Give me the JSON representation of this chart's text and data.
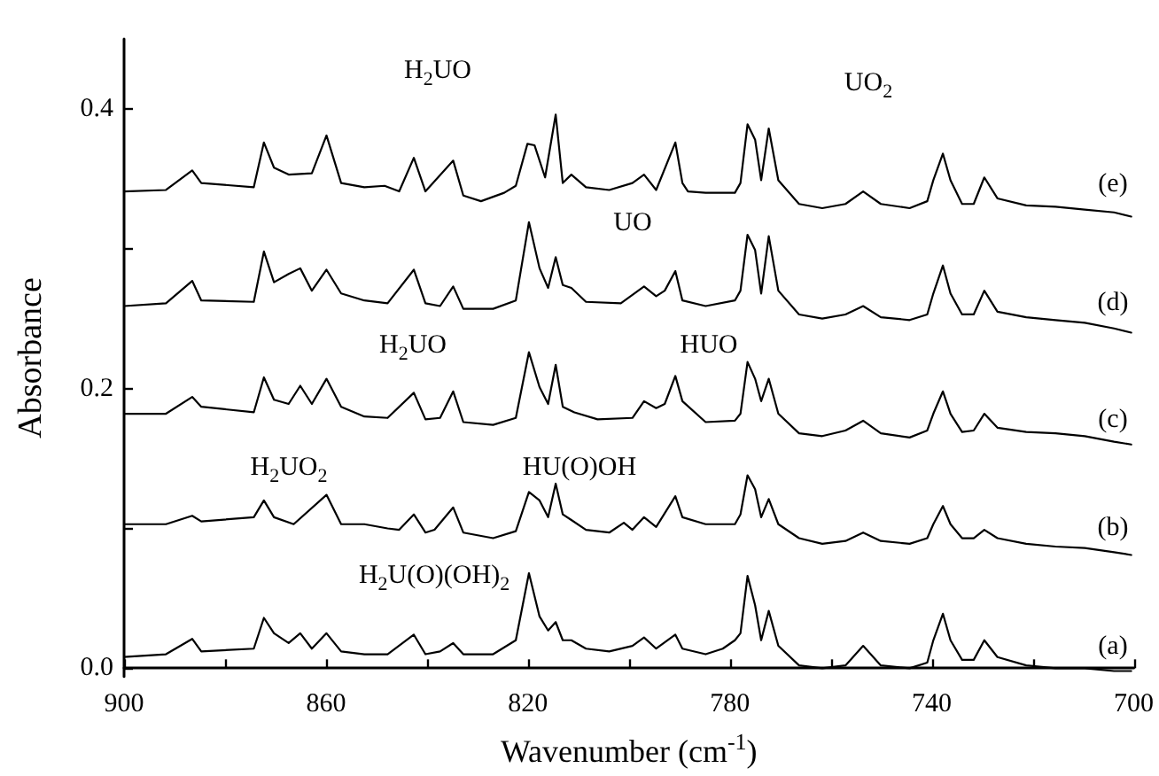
{
  "chart_data": {
    "type": "line",
    "xlabel": "Wavenumber (cm$^{-1}$)",
    "ylabel": "Absorbance",
    "xlim": [
      900,
      700
    ],
    "ylim": [
      -0.006,
      0.45
    ],
    "xticks": [
      900,
      {
        "value": 880,
        "label": null
      },
      860,
      {
        "value": 840,
        "label": null
      },
      820,
      {
        "value": 800,
        "label": null
      },
      780,
      {
        "value": 760,
        "label": null
      },
      740,
      {
        "value": 720,
        "label": null
      },
      700
    ],
    "yticks": [
      {
        "value": 0,
        "label": "0.0"
      },
      {
        "value": 0.1,
        "label": null
      },
      0.2,
      {
        "value": 0.3,
        "label": null
      },
      0.4
    ],
    "grid": false,
    "marker": "none",
    "line_style": "solid",
    "series": [
      {
        "color": "#000000",
        "x": [
          900,
          891.7,
          886.5,
          884.7,
          874.3,
          872.3,
          870.3,
          867.4,
          862.8,
          859.9,
          857.0,
          852.4,
          848.4,
          845.5,
          842.6,
          840.3,
          834.8,
          832.8,
          829.3,
          824.7,
          822.4,
          820.1,
          818.7,
          816.6,
          814.5,
          813.1,
          811.4,
          808.5,
          803.9,
          799.3,
          797.0,
          794.6,
          790.8,
          789.4,
          788.3,
          784.8,
          779.0,
          777.9,
          776.5,
          775.0,
          773.8,
          772.3,
          770.4,
          766.3,
          761.7,
          757.1,
          753.6,
          750.1,
          744.4,
          740.9,
          739.7,
          737.8,
          736.3,
          734.0,
          731.7,
          729.6,
          727.0,
          721.3,
          715.5,
          709.7,
          703.9,
          700.5
        ],
        "values": [
          0.341,
          0.342,
          0.356,
          0.347,
          0.344,
          0.376,
          0.358,
          0.353,
          0.354,
          0.381,
          0.347,
          0.344,
          0.345,
          0.341,
          0.365,
          0.341,
          0.363,
          0.338,
          0.334,
          0.34,
          0.345,
          0.375,
          0.374,
          0.351,
          0.396,
          0.347,
          0.353,
          0.344,
          0.342,
          0.347,
          0.353,
          0.342,
          0.376,
          0.347,
          0.341,
          0.34,
          0.34,
          0.347,
          0.389,
          0.378,
          0.349,
          0.386,
          0.349,
          0.332,
          0.329,
          0.332,
          0.341,
          0.332,
          0.329,
          0.334,
          0.349,
          0.368,
          0.349,
          0.332,
          0.332,
          0.351,
          0.336,
          0.331,
          0.33,
          0.328,
          0.326,
          0.323
        ]
      },
      {
        "color": "#000000",
        "x": [
          900,
          891.7,
          886.5,
          884.7,
          874.3,
          872.3,
          870.3,
          867.4,
          865.1,
          862.8,
          859.9,
          857.0,
          852.4,
          847.8,
          842.6,
          840.3,
          837.4,
          834.8,
          832.8,
          826.9,
          822.4,
          819.8,
          817.7,
          816.0,
          814.5,
          813.1,
          811.4,
          808.5,
          801.6,
          797.0,
          794.6,
          792.9,
          790.8,
          789.4,
          784.8,
          779.0,
          777.9,
          776.5,
          775.0,
          773.8,
          772.3,
          770.4,
          766.3,
          761.7,
          757.1,
          753.6,
          750.1,
          744.4,
          740.9,
          739.7,
          737.8,
          736.3,
          734.0,
          731.7,
          729.6,
          727.0,
          721.3,
          715.5,
          709.7,
          703.9,
          700.5
        ],
        "values": [
          0.259,
          0.261,
          0.277,
          0.263,
          0.262,
          0.298,
          0.276,
          0.282,
          0.286,
          0.27,
          0.285,
          0.268,
          0.263,
          0.261,
          0.285,
          0.261,
          0.259,
          0.273,
          0.257,
          0.257,
          0.263,
          0.319,
          0.286,
          0.272,
          0.294,
          0.274,
          0.272,
          0.262,
          0.261,
          0.273,
          0.266,
          0.27,
          0.284,
          0.263,
          0.259,
          0.263,
          0.27,
          0.31,
          0.299,
          0.268,
          0.309,
          0.27,
          0.253,
          0.25,
          0.253,
          0.259,
          0.251,
          0.249,
          0.253,
          0.268,
          0.288,
          0.268,
          0.253,
          0.253,
          0.27,
          0.255,
          0.251,
          0.249,
          0.247,
          0.243,
          0.24
        ]
      },
      {
        "color": "#000000",
        "x": [
          900,
          891.7,
          886.5,
          884.7,
          874.3,
          872.3,
          870.3,
          867.4,
          865.1,
          862.8,
          859.9,
          857.0,
          852.4,
          847.8,
          842.6,
          840.3,
          837.4,
          834.8,
          832.8,
          826.9,
          822.4,
          819.8,
          817.7,
          816.0,
          814.5,
          813.1,
          810.8,
          806.2,
          799.3,
          797.0,
          794.6,
          792.9,
          790.8,
          789.4,
          784.8,
          779.0,
          777.9,
          776.5,
          775.0,
          773.8,
          772.3,
          770.4,
          766.3,
          761.7,
          757.1,
          753.6,
          750.1,
          744.4,
          740.9,
          739.7,
          737.8,
          736.3,
          734.0,
          731.7,
          729.6,
          727.0,
          721.3,
          715.5,
          709.7,
          703.9,
          700.5
        ],
        "values": [
          0.182,
          0.182,
          0.194,
          0.187,
          0.183,
          0.208,
          0.192,
          0.189,
          0.202,
          0.189,
          0.207,
          0.187,
          0.18,
          0.179,
          0.197,
          0.178,
          0.179,
          0.198,
          0.176,
          0.174,
          0.179,
          0.226,
          0.201,
          0.189,
          0.217,
          0.187,
          0.183,
          0.178,
          0.179,
          0.191,
          0.186,
          0.189,
          0.209,
          0.191,
          0.176,
          0.177,
          0.182,
          0.219,
          0.207,
          0.191,
          0.207,
          0.182,
          0.168,
          0.166,
          0.17,
          0.177,
          0.168,
          0.165,
          0.17,
          0.182,
          0.198,
          0.182,
          0.169,
          0.17,
          0.182,
          0.172,
          0.169,
          0.168,
          0.166,
          0.162,
          0.16
        ]
      },
      {
        "color": "#000000",
        "x": [
          900,
          891.7,
          886.5,
          884.7,
          874.3,
          872.3,
          870.3,
          866.4,
          859.9,
          857.0,
          852.4,
          847.8,
          845.5,
          842.6,
          840.3,
          838.5,
          834.8,
          832.8,
          826.9,
          822.4,
          819.8,
          817.7,
          816.0,
          814.5,
          813.1,
          811.4,
          808.5,
          803.9,
          801.0,
          799.3,
          797.0,
          794.6,
          790.8,
          789.4,
          784.8,
          779.0,
          777.9,
          776.5,
          775.0,
          773.8,
          772.3,
          770.4,
          766.3,
          761.7,
          757.1,
          753.6,
          750.1,
          744.4,
          740.9,
          739.7,
          737.8,
          736.3,
          734.0,
          731.7,
          729.6,
          727.0,
          721.3,
          715.5,
          709.7,
          703.9,
          700.5
        ],
        "values": [
          0.103,
          0.103,
          0.109,
          0.105,
          0.108,
          0.12,
          0.108,
          0.103,
          0.124,
          0.103,
          0.103,
          0.1,
          0.099,
          0.11,
          0.097,
          0.099,
          0.115,
          0.097,
          0.093,
          0.098,
          0.126,
          0.12,
          0.108,
          0.132,
          0.11,
          0.106,
          0.099,
          0.097,
          0.104,
          0.099,
          0.108,
          0.101,
          0.123,
          0.108,
          0.103,
          0.103,
          0.11,
          0.138,
          0.128,
          0.108,
          0.121,
          0.103,
          0.093,
          0.089,
          0.091,
          0.097,
          0.091,
          0.089,
          0.093,
          0.103,
          0.116,
          0.103,
          0.093,
          0.093,
          0.099,
          0.093,
          0.089,
          0.087,
          0.086,
          0.083,
          0.081
        ]
      },
      {
        "color": "#000000",
        "x": [
          900,
          891.7,
          886.5,
          884.7,
          874.3,
          872.3,
          870.3,
          867.4,
          865.1,
          862.8,
          859.9,
          857.0,
          852.4,
          847.8,
          842.6,
          840.3,
          837.4,
          834.8,
          832.8,
          826.9,
          822.4,
          819.8,
          817.7,
          816.0,
          814.5,
          813.1,
          811.4,
          808.5,
          803.9,
          799.3,
          797.0,
          794.6,
          790.8,
          789.4,
          784.8,
          781.4,
          779.0,
          777.9,
          776.5,
          775.0,
          773.8,
          772.3,
          770.4,
          766.3,
          761.7,
          757.1,
          753.6,
          750.1,
          744.4,
          740.9,
          739.7,
          737.8,
          736.3,
          734.0,
          731.7,
          729.6,
          727.0,
          721.3,
          715.5,
          709.7,
          703.9,
          700.5
        ],
        "values": [
          0.008,
          0.01,
          0.021,
          0.012,
          0.014,
          0.036,
          0.025,
          0.018,
          0.025,
          0.014,
          0.025,
          0.012,
          0.01,
          0.01,
          0.024,
          0.01,
          0.012,
          0.018,
          0.01,
          0.01,
          0.02,
          0.068,
          0.037,
          0.027,
          0.033,
          0.02,
          0.02,
          0.014,
          0.012,
          0.016,
          0.022,
          0.014,
          0.024,
          0.014,
          0.01,
          0.014,
          0.02,
          0.025,
          0.066,
          0.045,
          0.02,
          0.041,
          0.016,
          0.002,
          0.0,
          0.002,
          0.016,
          0.002,
          0.0,
          0.004,
          0.02,
          0.039,
          0.02,
          0.006,
          0.006,
          0.02,
          0.008,
          0.002,
          0.0,
          0.0,
          -0.002,
          -0.002
        ]
      }
    ],
    "annotations": [
      "H$_{2}$UO",
      "UO$_{2}$",
      "UO",
      "H$_{2}$UO",
      "HUO",
      "H$_{2}$UO$_{2}$",
      "HU(O)OH",
      "H$_{2}$U(O)(OH)$_{2}$",
      "(e)",
      "(d)",
      "(c)",
      "(b)",
      "(a)"
    ]
  }
}
